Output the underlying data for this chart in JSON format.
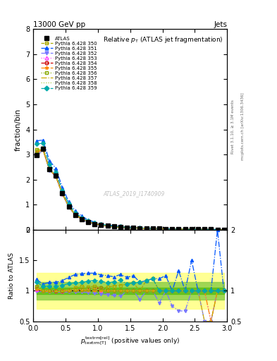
{
  "title_top": "13000 GeV pp",
  "title_right": "Jets",
  "plot_title": "Relative $p_{\\rm T}$ (ATLAS jet fragmentation)",
  "ylabel_main": "fraction/bin",
  "ylabel_ratio": "Ratio to ATLAS",
  "xlabel": "$p_{\\rm textrm[T]}^{\\rm textrm[rel]}$ (positive values only)",
  "watermark": "ATLAS_2019_I1740909",
  "right_label": "Rivet 3.1.10, ≥ 3.1M events",
  "right_label2": "mcplots.cern.ch [arXiv:1306.3436]",
  "x_values": [
    0.05,
    0.15,
    0.25,
    0.35,
    0.45,
    0.55,
    0.65,
    0.75,
    0.85,
    0.95,
    1.05,
    1.15,
    1.25,
    1.35,
    1.45,
    1.55,
    1.65,
    1.75,
    1.85,
    1.95,
    2.05,
    2.15,
    2.25,
    2.35,
    2.45,
    2.55,
    2.65,
    2.75,
    2.85,
    2.95
  ],
  "atlas_y": [
    2.98,
    3.22,
    2.42,
    2.15,
    1.45,
    0.92,
    0.6,
    0.43,
    0.31,
    0.24,
    0.19,
    0.16,
    0.13,
    0.11,
    0.09,
    0.08,
    0.07,
    0.06,
    0.05,
    0.05,
    0.04,
    0.04,
    0.03,
    0.03,
    0.02,
    0.02,
    0.02,
    0.02,
    0.01,
    0.01
  ],
  "atlas_err": [
    0.04,
    0.05,
    0.03,
    0.03,
    0.02,
    0.015,
    0.01,
    0.008,
    0.006,
    0.005,
    0.004,
    0.003,
    0.003,
    0.002,
    0.002,
    0.002,
    0.001,
    0.001,
    0.001,
    0.001,
    0.001,
    0.001,
    0.001,
    0.001,
    0.001,
    0.001,
    0.001,
    0.001,
    0.001,
    0.001
  ],
  "series": [
    {
      "label": "Pythia 6.428 350",
      "color": "#aaaa00",
      "linestyle": "--",
      "marker": "s",
      "filled": false,
      "ratio_y": [
        1.07,
        1.01,
        1.0,
        0.99,
        1.01,
        1.02,
        1.05,
        1.07,
        1.06,
        1.08,
        1.05,
        1.06,
        1.08,
        1.09,
        1.11,
        1.13,
        1.0,
        1.17,
        1.2,
        1.0,
        1.0,
        1.0,
        1.0,
        1.0,
        1.0,
        1.0,
        1.0,
        1.0,
        1.0,
        1.0
      ]
    },
    {
      "label": "Pythia 6.428 351",
      "color": "#0055ff",
      "linestyle": "-.",
      "marker": "^",
      "filled": true,
      "ratio_y": [
        1.19,
        1.11,
        1.14,
        1.14,
        1.17,
        1.22,
        1.27,
        1.28,
        1.29,
        1.29,
        1.26,
        1.25,
        1.23,
        1.27,
        1.22,
        1.25,
        1.14,
        1.17,
        1.2,
        1.2,
        1.25,
        1.0,
        1.33,
        1.0,
        1.5,
        1.0,
        1.0,
        1.0,
        2.0,
        1.0
      ]
    },
    {
      "label": "Pythia 6.428 352",
      "color": "#7777ff",
      "linestyle": "-.",
      "marker": "v",
      "filled": true,
      "ratio_y": [
        0.99,
        0.99,
        0.98,
        0.98,
        0.98,
        0.98,
        0.98,
        0.98,
        0.97,
        0.96,
        0.95,
        0.94,
        0.92,
        0.91,
        1.0,
        1.0,
        0.86,
        1.0,
        1.0,
        0.8,
        1.0,
        0.75,
        0.67,
        0.67,
        1.0,
        1.0,
        0.5,
        0.5,
        1.0,
        1.0
      ]
    },
    {
      "label": "Pythia 6.428 353",
      "color": "#ff44ff",
      "linestyle": ":",
      "marker": "^",
      "filled": false,
      "ratio_y": [
        1.02,
        1.0,
        1.0,
        1.0,
        0.99,
        1.01,
        1.02,
        1.02,
        1.03,
        1.04,
        1.0,
        1.0,
        1.0,
        1.0,
        1.0,
        1.0,
        1.0,
        1.0,
        1.0,
        1.0,
        1.0,
        1.0,
        1.0,
        1.0,
        1.0,
        1.0,
        1.0,
        0.5,
        1.0,
        1.0
      ]
    },
    {
      "label": "Pythia 6.428 354",
      "color": "#cc0000",
      "linestyle": "--",
      "marker": "o",
      "filled": false,
      "ratio_y": [
        1.04,
        1.0,
        1.0,
        0.99,
        0.99,
        1.01,
        1.02,
        1.02,
        1.03,
        1.04,
        1.05,
        1.0,
        1.0,
        1.0,
        1.0,
        1.0,
        1.0,
        1.0,
        1.0,
        1.0,
        1.0,
        1.0,
        1.0,
        1.0,
        1.0,
        1.0,
        1.0,
        1.0,
        1.0,
        1.0
      ]
    },
    {
      "label": "Pythia 6.428 355",
      "color": "#ff8800",
      "linestyle": "-.",
      "marker": "*",
      "filled": true,
      "ratio_y": [
        1.03,
        0.99,
        0.99,
        0.99,
        0.99,
        1.0,
        1.0,
        1.0,
        1.0,
        1.0,
        1.0,
        1.0,
        1.0,
        1.0,
        1.0,
        1.0,
        1.0,
        1.0,
        1.0,
        1.0,
        1.0,
        1.0,
        1.0,
        1.0,
        1.0,
        1.0,
        1.0,
        0.5,
        1.0,
        1.0
      ]
    },
    {
      "label": "Pythia 6.428 356",
      "color": "#88aa00",
      "linestyle": ":",
      "marker": "s",
      "filled": false,
      "ratio_y": [
        1.06,
        1.01,
        1.0,
        1.0,
        1.0,
        1.01,
        1.02,
        1.02,
        1.03,
        1.04,
        1.05,
        1.0,
        1.0,
        1.0,
        1.0,
        1.0,
        1.0,
        1.0,
        1.0,
        1.0,
        1.0,
        1.0,
        1.0,
        1.0,
        1.0,
        1.0,
        1.0,
        1.0,
        1.0,
        1.0
      ]
    },
    {
      "label": "Pythia 6.428 357",
      "color": "#ccaa00",
      "linestyle": "-.",
      "marker": null,
      "filled": false,
      "ratio_y": [
        1.05,
        1.0,
        1.0,
        0.99,
        0.99,
        1.01,
        1.02,
        1.02,
        1.03,
        1.04,
        1.0,
        1.0,
        1.0,
        1.0,
        1.0,
        1.0,
        1.0,
        1.0,
        1.0,
        1.0,
        1.0,
        1.0,
        1.0,
        1.0,
        1.0,
        1.0,
        0.5,
        0.5,
        1.0,
        1.0
      ]
    },
    {
      "label": "Pythia 6.428 358",
      "color": "#aacc44",
      "linestyle": ":",
      "marker": null,
      "filled": false,
      "ratio_y": [
        1.07,
        1.01,
        1.0,
        1.0,
        1.0,
        1.01,
        1.02,
        1.02,
        1.03,
        1.04,
        1.05,
        1.0,
        1.0,
        1.0,
        1.0,
        1.0,
        1.0,
        1.0,
        1.0,
        1.0,
        1.0,
        1.0,
        1.0,
        1.0,
        1.0,
        1.0,
        1.0,
        1.0,
        1.0,
        1.0
      ]
    },
    {
      "label": "Pythia 6.428 359",
      "color": "#00aaaa",
      "linestyle": "-.",
      "marker": "D",
      "filled": true,
      "ratio_y": [
        1.15,
        1.07,
        1.08,
        1.07,
        1.09,
        1.12,
        1.13,
        1.14,
        1.16,
        1.17,
        1.16,
        1.13,
        1.15,
        1.18,
        1.11,
        1.13,
        1.14,
        1.17,
        1.2,
        1.0,
        1.0,
        1.0,
        1.0,
        1.0,
        1.0,
        1.0,
        1.0,
        1.0,
        1.0,
        1.0
      ]
    }
  ],
  "ylim_main": [
    0,
    8
  ],
  "ylim_ratio": [
    0.5,
    2.0
  ],
  "xlim": [
    0,
    3.0
  ],
  "yellow_band_lo": 0.7,
  "yellow_band_hi": 1.3,
  "green_band_lo": 0.85,
  "green_band_hi": 1.15,
  "inner_green_lo": 0.95,
  "inner_green_hi": 1.05
}
